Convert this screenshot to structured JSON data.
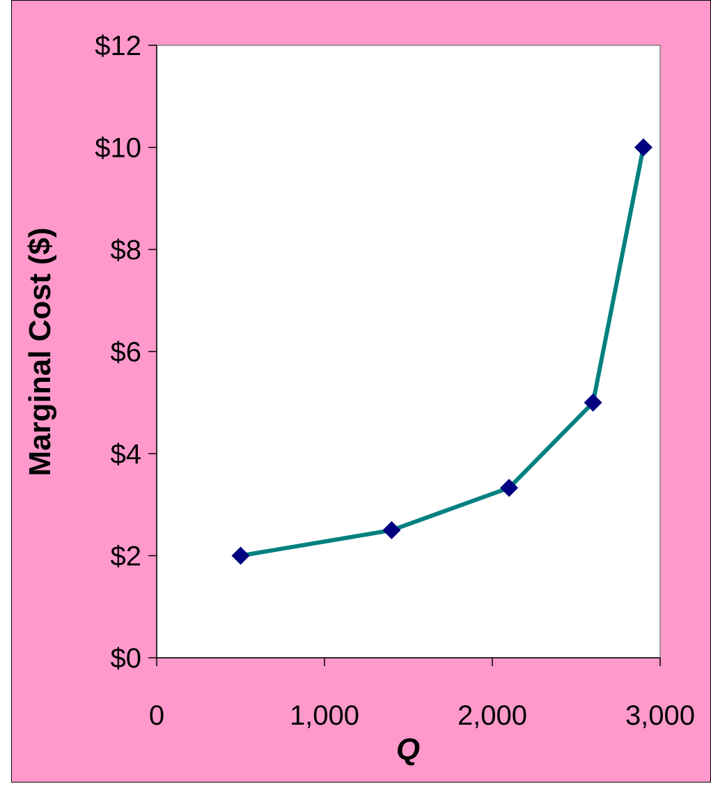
{
  "chart_data": {
    "type": "line",
    "xlabel": "Q",
    "ylabel": "Marginal Cost ($)",
    "x": [
      500,
      1400,
      2100,
      2600,
      2900
    ],
    "series": [
      {
        "values": [
          2.0,
          2.5,
          3.33,
          5.0,
          10.0
        ]
      }
    ],
    "xlim": [
      0,
      3000
    ],
    "ylim": [
      0,
      12
    ],
    "xticks": [
      0,
      1000,
      2000,
      3000
    ],
    "xtick_labels": [
      "0",
      "1,000",
      "2,000",
      "3,000"
    ],
    "yticks": [
      0,
      2,
      4,
      6,
      8,
      10,
      12
    ],
    "ytick_labels": [
      "$0",
      "$2",
      "$4",
      "$6",
      "$8",
      "$10",
      "$12"
    ],
    "grid": false,
    "legend": "none",
    "colors": {
      "background": "#FF99CC",
      "plot_area": "#FFFFFF",
      "line": "#008080",
      "marker": "#000080"
    }
  }
}
